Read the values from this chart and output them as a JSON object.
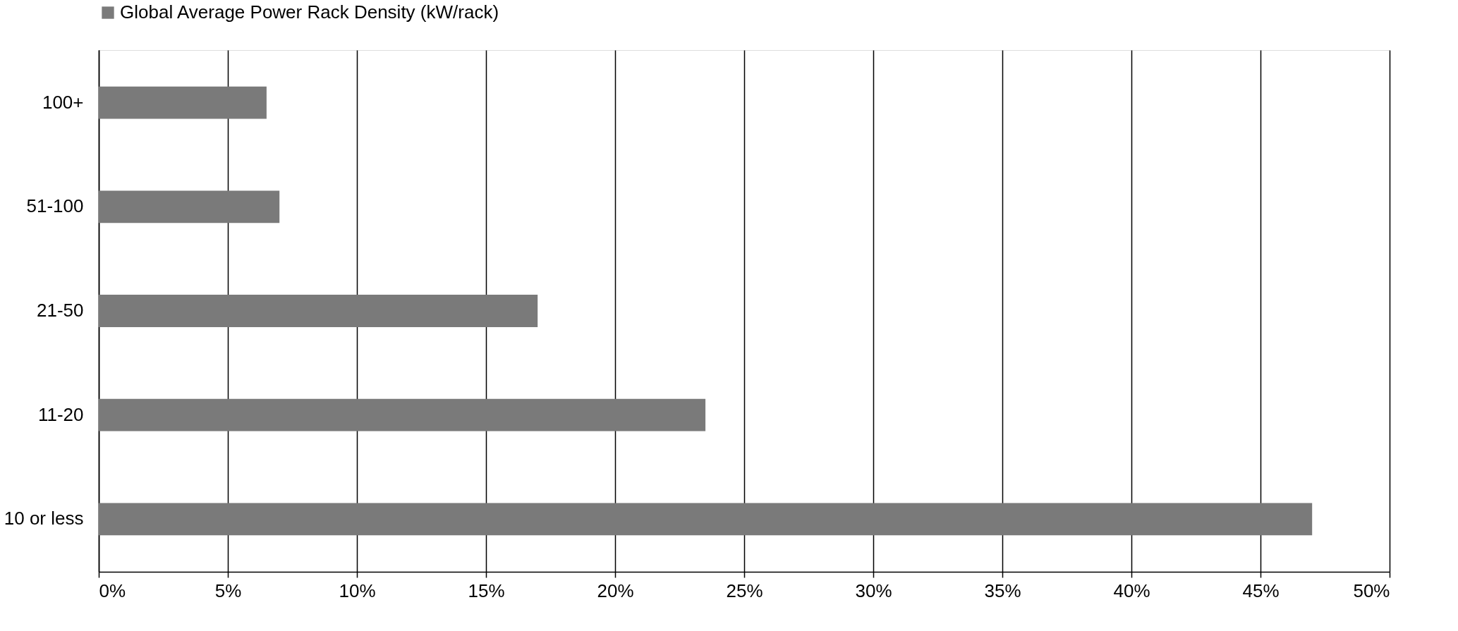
{
  "chart_data": {
    "type": "bar",
    "orientation": "horizontal",
    "categories": [
      "100+",
      "51-100",
      "21-50",
      "11-20",
      "10 or less"
    ],
    "series": [
      {
        "name": "Global Average Power Rack Density (kW/rack)",
        "color": "#7a7a7a",
        "values": [
          6.5,
          7,
          17,
          23.5,
          47
        ]
      }
    ],
    "xlim": [
      0,
      50
    ],
    "xticks": [
      {
        "value": 0,
        "label": "0%"
      },
      {
        "value": 5,
        "label": "5%"
      },
      {
        "value": 10,
        "label": "10%"
      },
      {
        "value": 15,
        "label": "15%"
      },
      {
        "value": 20,
        "label": "20%"
      },
      {
        "value": 25,
        "label": "25%"
      },
      {
        "value": 30,
        "label": "30%"
      },
      {
        "value": 35,
        "label": "35%"
      },
      {
        "value": 40,
        "label": "40%"
      },
      {
        "value": 45,
        "label": "45%"
      },
      {
        "value": 50,
        "label": "50%"
      }
    ],
    "grid": "x",
    "legend": "top"
  }
}
